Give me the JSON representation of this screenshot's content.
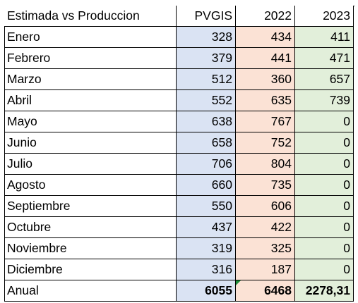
{
  "table": {
    "header": [
      "Estimada vs Produccion",
      "PVGIS",
      "2022",
      "2023"
    ],
    "rows": [
      [
        "Enero",
        328,
        434,
        411
      ],
      [
        "Febrero",
        379,
        441,
        471
      ],
      [
        "Marzo",
        512,
        360,
        657
      ],
      [
        "Abril",
        552,
        635,
        739
      ],
      [
        "Mayo",
        638,
        767,
        0
      ],
      [
        "Junio",
        658,
        752,
        0
      ],
      [
        "Julio",
        706,
        804,
        0
      ],
      [
        "Agosto",
        660,
        735,
        0
      ],
      [
        "Septiembre",
        550,
        606,
        0
      ],
      [
        "Octubre",
        437,
        422,
        0
      ],
      [
        "Noviembre",
        319,
        325,
        0
      ],
      [
        "Diciembre",
        316,
        187,
        0
      ]
    ],
    "total": [
      "Anual",
      6055,
      6468,
      "2278,31"
    ]
  }
}
